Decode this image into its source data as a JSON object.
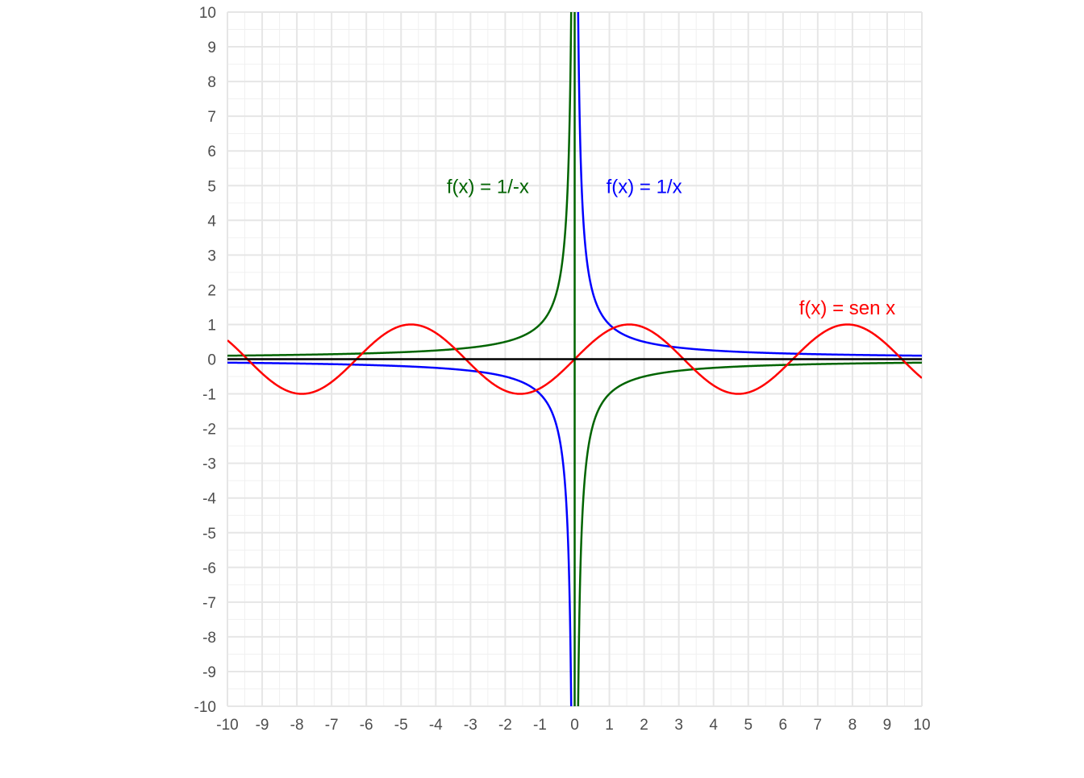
{
  "chart_data": {
    "type": "line",
    "title": "",
    "xlabel": "",
    "ylabel": "",
    "xlim": [
      -10,
      10
    ],
    "ylim": [
      -10,
      10
    ],
    "x_ticks": [
      "-10",
      "-9",
      "-8",
      "-7",
      "-6",
      "-5",
      "-4",
      "-3",
      "-2",
      "-1",
      "0",
      "1",
      "2",
      "3",
      "4",
      "5",
      "6",
      "7",
      "8",
      "9",
      "10"
    ],
    "y_ticks": [
      "-10",
      "-9",
      "-8",
      "-7",
      "-6",
      "-5",
      "-4",
      "-3",
      "-2",
      "-1",
      "0",
      "1",
      "2",
      "3",
      "4",
      "5",
      "6",
      "7",
      "8",
      "9",
      "10"
    ],
    "grid": true,
    "minor_grid": true,
    "colors": {
      "grid_major": "#e6e6e6",
      "grid_minor": "#f0f0f0",
      "x_axis": "#000000",
      "tick_text": "#4d4d4d"
    },
    "series": [
      {
        "name": "f(x) = 1/-x",
        "function": "-1/x",
        "color": "#006400",
        "label_anchor": [
          -2.5,
          5
        ],
        "x": [
          -10,
          -8,
          -6,
          -4,
          -2,
          -1,
          -0.5,
          -0.2,
          -0.1,
          0.1,
          0.2,
          0.5,
          1,
          2,
          4,
          6,
          8,
          10
        ],
        "y": [
          0.1,
          0.125,
          0.167,
          0.25,
          0.5,
          1,
          2,
          5,
          10,
          -10,
          -5,
          -2,
          -1,
          -0.5,
          -0.25,
          -0.167,
          -0.125,
          -0.1
        ]
      },
      {
        "name": "f(x) = 1/x",
        "function": "1/x",
        "color": "#0000ff",
        "label_anchor": [
          2,
          5
        ],
        "x": [
          -10,
          -8,
          -6,
          -4,
          -2,
          -1,
          -0.5,
          -0.2,
          -0.1,
          0.1,
          0.2,
          0.5,
          1,
          2,
          4,
          6,
          8,
          10
        ],
        "y": [
          -0.1,
          -0.125,
          -0.167,
          -0.25,
          -0.5,
          -1,
          -2,
          -5,
          -10,
          10,
          5,
          2,
          1,
          0.5,
          0.25,
          0.167,
          0.125,
          0.1
        ]
      },
      {
        "name": "f(x) = sen x",
        "function": "sin(x)",
        "color": "#ff0000",
        "label_anchor": [
          7.85,
          1.5
        ],
        "x": [
          -10,
          -7.85,
          -6.28,
          -4.71,
          -3.14,
          -1.57,
          0,
          1.57,
          3.14,
          4.71,
          6.28,
          7.85,
          10
        ],
        "y": [
          0.54,
          -1,
          0,
          1,
          0,
          -1,
          0,
          1,
          0,
          -1,
          0,
          1,
          -0.54
        ]
      },
      {
        "name": "",
        "function": "vertical x = 0",
        "color": "#006400",
        "x": [
          0,
          0
        ],
        "y": [
          -10,
          10
        ]
      },
      {
        "name": "",
        "function": "0",
        "color": "#000000",
        "x": [
          -10,
          10
        ],
        "y": [
          0,
          0
        ]
      }
    ]
  }
}
